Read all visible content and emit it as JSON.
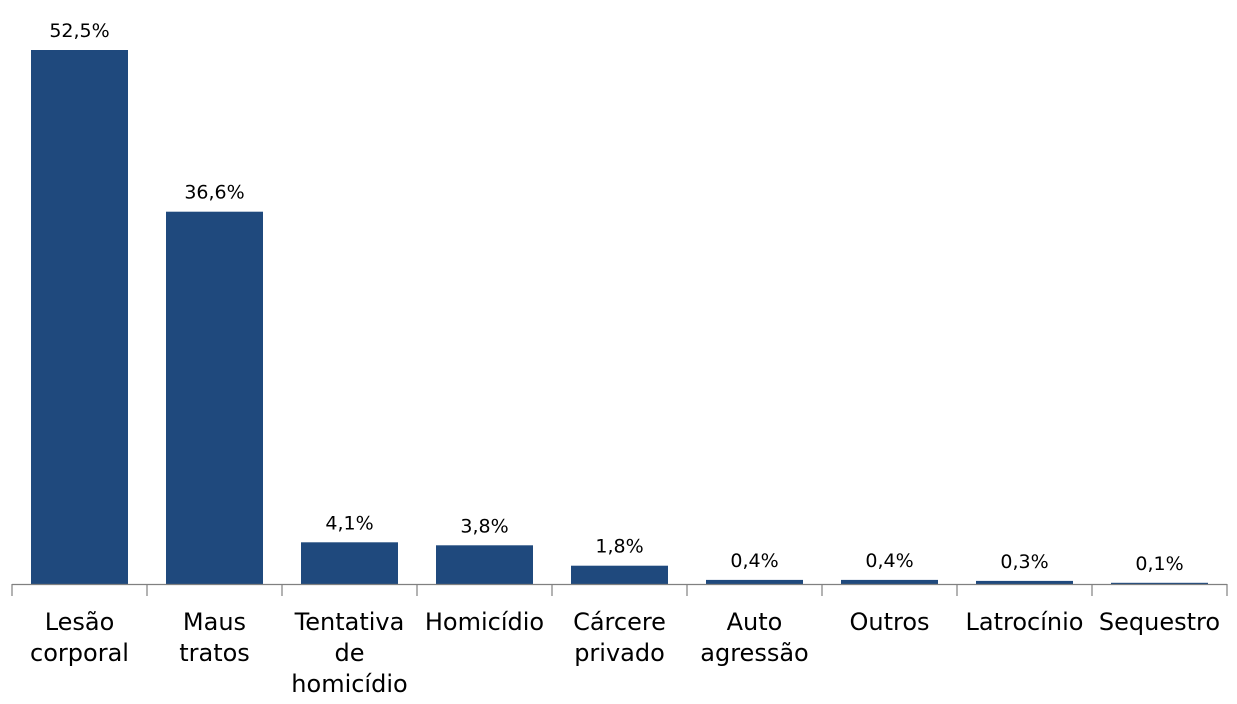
{
  "chart_data": {
    "type": "bar",
    "categories": [
      [
        "Lesão",
        "corporal"
      ],
      [
        "Maus",
        "tratos"
      ],
      [
        "Tentativa",
        "de",
        "homicídio"
      ],
      [
        "Homicídio"
      ],
      [
        "Cárcere",
        "privado"
      ],
      [
        "Auto",
        "agressão"
      ],
      [
        "Outros"
      ],
      [
        "Latrocínio"
      ],
      [
        "Sequestro"
      ]
    ],
    "values": [
      52.5,
      36.6,
      4.1,
      3.8,
      1.8,
      0.4,
      0.4,
      0.3,
      0.1
    ],
    "value_labels": [
      "52,5%",
      "36,6%",
      "4,1%",
      "3,8%",
      "1,8%",
      "0,4%",
      "0,4%",
      "0,3%",
      "0,1%"
    ],
    "ylim": [
      0,
      52.5
    ],
    "grid": false,
    "legend": "none",
    "colors": {
      "bar": "#1f497d",
      "axis": "#808080",
      "text": "#000000"
    }
  }
}
